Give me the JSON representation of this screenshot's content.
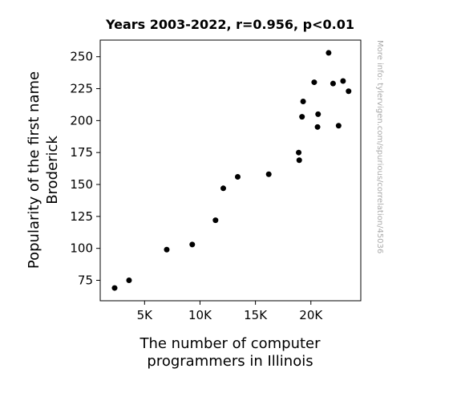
{
  "chart_data": {
    "type": "scatter",
    "title": "Years 2003-2022, r=0.956, p<0.01",
    "xlabel_lines": [
      "The number of computer",
      "programmers in Illinois"
    ],
    "ylabel_lines": [
      "Popularity of the first name",
      "Broderick"
    ],
    "side_note": "More info: tylervigen.com/spurious/correlation/45036",
    "xlim": [
      1000,
      24500
    ],
    "ylim": [
      59,
      263
    ],
    "x_ticks": [
      {
        "value": 5000,
        "label": "5K"
      },
      {
        "value": 10000,
        "label": "10K"
      },
      {
        "value": 15000,
        "label": "15K"
      },
      {
        "value": 20000,
        "label": "20K"
      }
    ],
    "y_ticks": [
      {
        "value": 75,
        "label": "75"
      },
      {
        "value": 100,
        "label": "100"
      },
      {
        "value": 125,
        "label": "125"
      },
      {
        "value": 150,
        "label": "150"
      },
      {
        "value": 175,
        "label": "175"
      },
      {
        "value": 200,
        "label": "200"
      },
      {
        "value": 225,
        "label": "225"
      },
      {
        "value": 250,
        "label": "250"
      }
    ],
    "points": [
      {
        "x": 2300,
        "y": 69
      },
      {
        "x": 3600,
        "y": 75
      },
      {
        "x": 7000,
        "y": 99
      },
      {
        "x": 9300,
        "y": 103
      },
      {
        "x": 11400,
        "y": 122
      },
      {
        "x": 12100,
        "y": 147
      },
      {
        "x": 13400,
        "y": 156
      },
      {
        "x": 16200,
        "y": 158
      },
      {
        "x": 18900,
        "y": 175
      },
      {
        "x": 18950,
        "y": 169
      },
      {
        "x": 19200,
        "y": 203
      },
      {
        "x": 19300,
        "y": 215
      },
      {
        "x": 20300,
        "y": 230
      },
      {
        "x": 20600,
        "y": 195
      },
      {
        "x": 20650,
        "y": 205
      },
      {
        "x": 21600,
        "y": 253
      },
      {
        "x": 22000,
        "y": 229
      },
      {
        "x": 22500,
        "y": 196
      },
      {
        "x": 22900,
        "y": 231
      },
      {
        "x": 23400,
        "y": 223
      }
    ],
    "marker_color": "#000000"
  }
}
